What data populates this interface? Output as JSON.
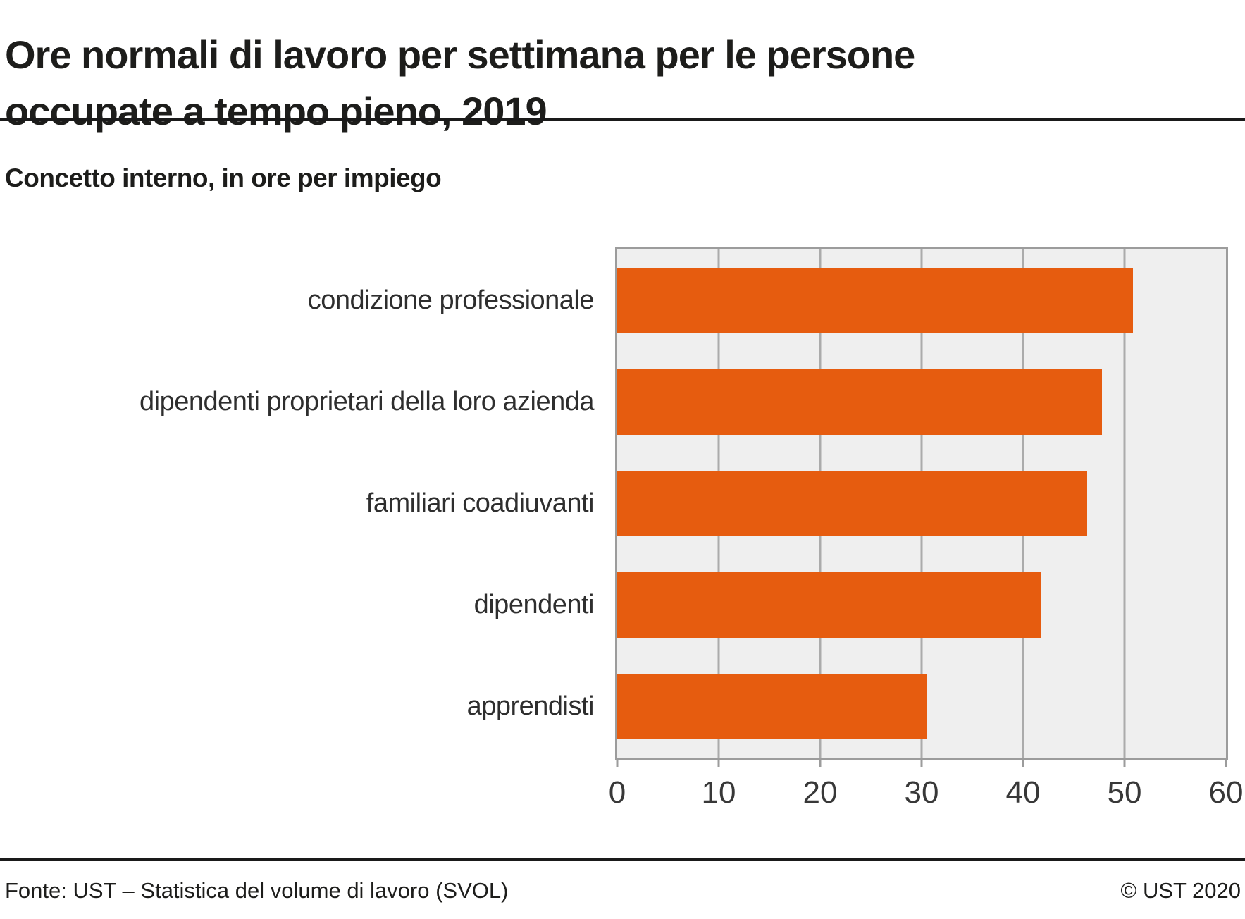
{
  "header": {
    "title_lines": [
      "Ore normali di lavoro per settimana per le persone",
      "occupate a tempo pieno, 2019"
    ],
    "subtitle": "Concetto interno, in ore per impiego"
  },
  "chart_data": {
    "type": "bar",
    "orientation": "horizontal",
    "title": "Ore normali di lavoro per settimana per le persone occupate a tempo pieno, 2019",
    "subtitle": "Concetto interno, in ore per impiego",
    "categories": [
      "condizione professionale",
      "dipendenti proprietari della loro azienda",
      "familiari coadiuvanti",
      "dipendenti",
      "apprendisti"
    ],
    "values": [
      50.8,
      47.8,
      46.3,
      41.8,
      30.5
    ],
    "xlabel": "",
    "ylabel": "",
    "xlim": [
      0,
      60
    ],
    "xticks": [
      0,
      10,
      20,
      30,
      40,
      50,
      60
    ],
    "grid": true,
    "legend": "none",
    "bar_color": "#e65c0f",
    "plot_bg": "#efefef",
    "grid_color": "#ababab",
    "border_color": "#9c9c9c"
  },
  "footer": {
    "source": "Fonte: UST – Statistica del volume di lavoro (SVOL)",
    "copyright": "© UST 2020"
  }
}
